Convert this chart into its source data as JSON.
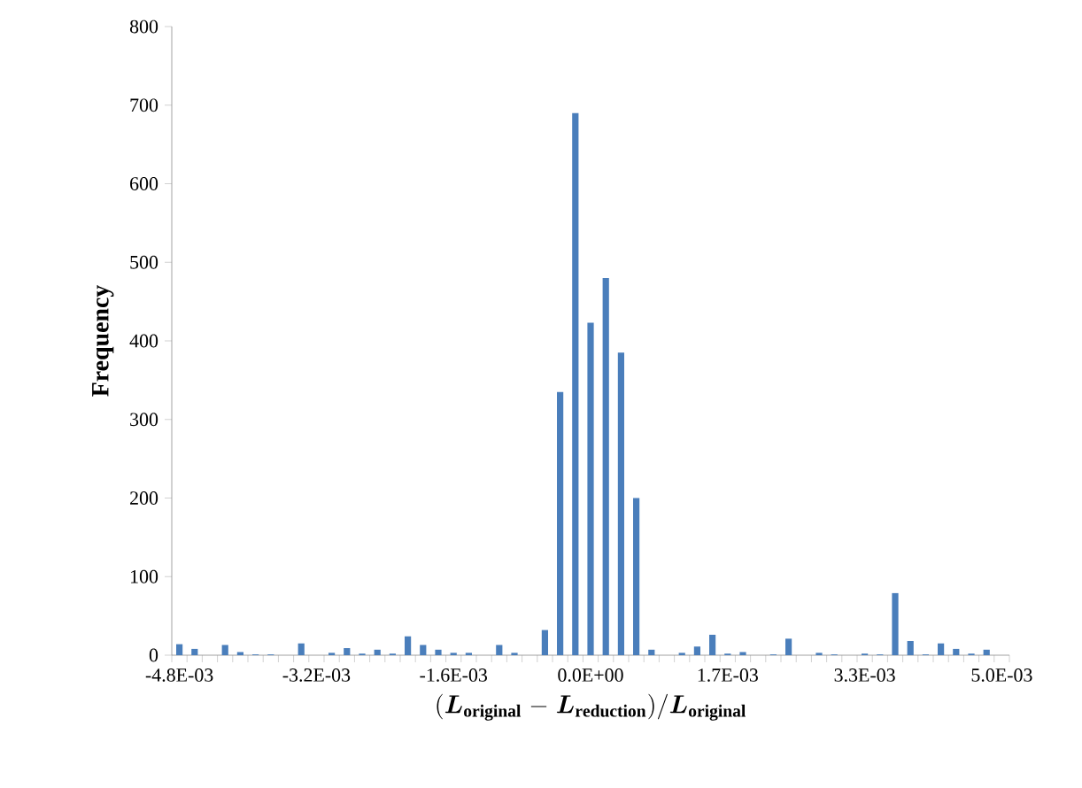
{
  "chart_data": {
    "type": "bar",
    "xlabel": "\\mathbf{(}\\bm{L}_{\\mathbf{original}}\\mathbf{\\;-\\;}\\bm{L}_{\\mathbf{reduction}}\\mathbf{)/}\\bm{L}_{\\mathbf{original}}",
    "ylabel": "Frequency",
    "categories": [
      "-4.8E-03",
      null,
      null,
      null,
      null,
      null,
      null,
      null,
      null,
      "-3.2E-03",
      null,
      null,
      null,
      null,
      null,
      null,
      null,
      null,
      "-1.6E-03",
      null,
      null,
      null,
      null,
      null,
      null,
      null,
      null,
      "0.0E+00",
      null,
      null,
      null,
      null,
      null,
      null,
      null,
      null,
      "1.7E-03",
      null,
      null,
      null,
      null,
      null,
      null,
      null,
      null,
      "3.3E-03",
      null,
      null,
      null,
      null,
      null,
      null,
      null,
      null,
      "5.0E-03"
    ],
    "values": [
      14,
      8,
      0,
      13,
      4,
      1,
      1,
      0,
      15,
      0,
      3,
      9,
      2,
      7,
      2,
      24,
      13,
      7,
      3,
      3,
      0,
      13,
      3,
      0,
      32,
      335,
      690,
      423,
      480,
      385,
      200,
      7,
      0,
      3,
      11,
      26,
      2,
      4,
      0,
      1,
      21,
      0,
      3,
      1,
      0,
      2,
      1,
      79,
      18,
      1,
      15,
      8,
      2,
      7,
      0
    ],
    "color": "#4a7ebb",
    "ylim": [
      0,
      800
    ],
    "yticks": [
      0,
      100,
      200,
      300,
      400,
      500,
      600,
      700,
      800
    ],
    "grid": false
  }
}
